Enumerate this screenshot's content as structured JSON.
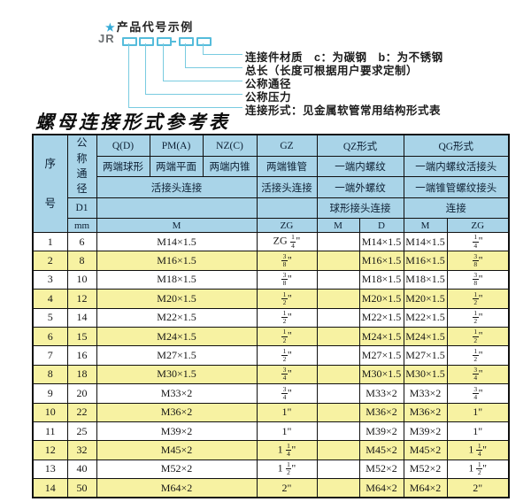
{
  "diagram": {
    "star": "★",
    "title": "产品代号示例",
    "prefix": "JR",
    "labels": [
      "连接件材质　c：为碳钢　b：为不锈钢",
      "总长（长度可根据用户要求定制）",
      "公称通径",
      "公称压力",
      "连接形式：见金属软管常用结构形式表"
    ]
  },
  "table_title": "螺母连接形式参考表",
  "table": {
    "header": {
      "serial": "序号",
      "nominal": "公称通径",
      "q": "Q(D)",
      "pm": "PM(A)",
      "nz": "NZ(C)",
      "gz": "GZ",
      "qz": "QZ形式",
      "qg": "QG形式",
      "q_sub": "两端球形",
      "pm_sub": "两端平面",
      "nz_sub": "两端内锥",
      "gz_sub": "两端锥管",
      "qz_sub": "一端内螺纹",
      "qg_sub": "一端内螺纹活接头",
      "union_left": "活接头连接",
      "gz_union": "活接头连接",
      "qz_sub2": "一端外螺纹",
      "qg_sub2": "一端锥管螺纹接头",
      "d1": "D1",
      "qz_sub3": "球形接头连接",
      "qg_sub3": "连接",
      "mm": "mm",
      "m": "M",
      "zg": "ZG",
      "qz_m": "M",
      "qz_d": "D",
      "qg_m": "M",
      "qg_zg": "ZG"
    },
    "rows": [
      {
        "no": "1",
        "mm": "6",
        "m": "M14×1.5",
        "gz": "ZG 1/4\"",
        "qz_m": "",
        "qz_d": "M14×1.5",
        "qg_m": "M14×1.5",
        "qg_zg": "1/4\""
      },
      {
        "no": "2",
        "mm": "8",
        "m": "M16×1.5",
        "gz": "3/8\"",
        "qz_m": "",
        "qz_d": "M16×1.5",
        "qg_m": "M16×1.5",
        "qg_zg": "3/8\""
      },
      {
        "no": "3",
        "mm": "10",
        "m": "M18×1.5",
        "gz": "3/8\"",
        "qz_m": "",
        "qz_d": "M18×1.5",
        "qg_m": "M18×1.5",
        "qg_zg": "3/8\""
      },
      {
        "no": "4",
        "mm": "12",
        "m": "M20×1.5",
        "gz": "1/2\"",
        "qz_m": "",
        "qz_d": "M20×1.5",
        "qg_m": "M20×1.5",
        "qg_zg": "1/2\""
      },
      {
        "no": "5",
        "mm": "14",
        "m": "M22×1.5",
        "gz": "1/2\"",
        "qz_m": "",
        "qz_d": "M22×1.5",
        "qg_m": "M22×1.5",
        "qg_zg": "1/2\""
      },
      {
        "no": "6",
        "mm": "15",
        "m": "M24×1.5",
        "gz": "1/2\"",
        "qz_m": "",
        "qz_d": "M24×1.5",
        "qg_m": "M24×1.5",
        "qg_zg": "1/2\""
      },
      {
        "no": "7",
        "mm": "16",
        "m": "M27×1.5",
        "gz": "1/2\"",
        "qz_m": "",
        "qz_d": "M27×1.5",
        "qg_m": "M27×1.5",
        "qg_zg": "1/2\""
      },
      {
        "no": "8",
        "mm": "18",
        "m": "M30×1.5",
        "gz": "3/4\"",
        "qz_m": "",
        "qz_d": "M30×1.5",
        "qg_m": "M30×1.5",
        "qg_zg": "3/4\""
      },
      {
        "no": "9",
        "mm": "20",
        "m": "M33×2",
        "gz": "3/4\"",
        "qz_m": "",
        "qz_d": "M33×2",
        "qg_m": "M33×2",
        "qg_zg": "3/4\""
      },
      {
        "no": "10",
        "mm": "22",
        "m": "M36×2",
        "gz": "1\"",
        "qz_m": "",
        "qz_d": "M36×2",
        "qg_m": "M36×2",
        "qg_zg": "1\""
      },
      {
        "no": "11",
        "mm": "25",
        "m": "M39×2",
        "gz": "1\"",
        "qz_m": "",
        "qz_d": "M39×2",
        "qg_m": "M39×2",
        "qg_zg": "1\""
      },
      {
        "no": "12",
        "mm": "32",
        "m": "M45×2",
        "gz": "1 1/4\"",
        "qz_m": "",
        "qz_d": "M45×2",
        "qg_m": "M45×2",
        "qg_zg": "1 1/4\""
      },
      {
        "no": "13",
        "mm": "40",
        "m": "M52×2",
        "gz": "1 1/2\"",
        "qz_m": "",
        "qz_d": "M52×2",
        "qg_m": "M52×2",
        "qg_zg": "1 1/2\""
      },
      {
        "no": "14",
        "mm": "50",
        "m": "M64×2",
        "gz": "2\"",
        "qz_m": "",
        "qz_d": "M64×2",
        "qg_m": "M64×2",
        "qg_zg": "2\""
      }
    ]
  }
}
